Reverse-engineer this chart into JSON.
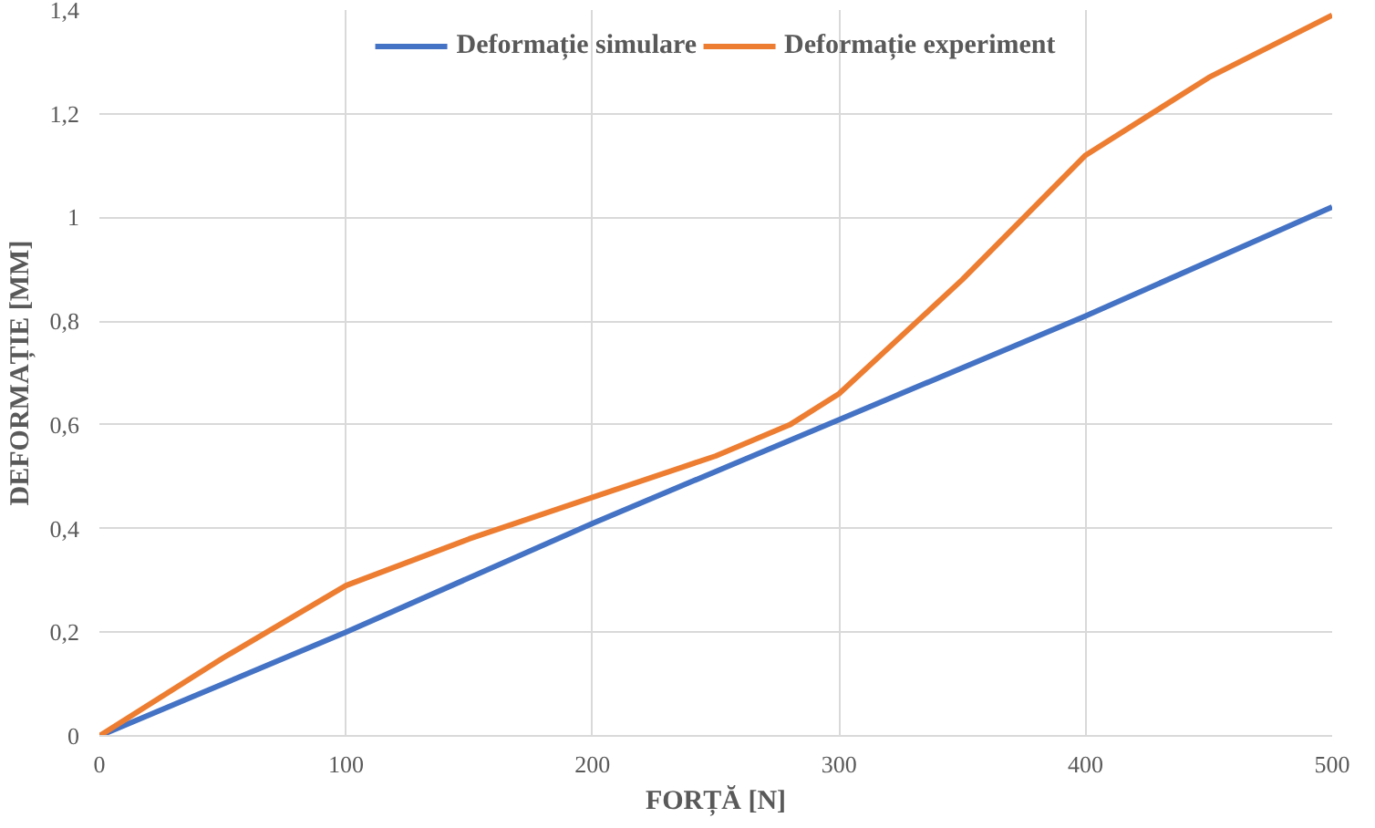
{
  "chart_data": {
    "type": "line",
    "xlabel": "FORȚĂ [N]",
    "ylabel": "DEFORMAȚIE [MM]",
    "xlim": [
      0,
      500
    ],
    "xticks": [
      0,
      100,
      200,
      300,
      400,
      500
    ],
    "ylim": [
      0,
      1.4
    ],
    "yticks": [
      0,
      {
        "value": 0.2,
        "label": "0,2"
      },
      {
        "value": 0.4,
        "label": "0,4"
      },
      {
        "value": 0.6,
        "label": "0,6"
      },
      {
        "value": 0.8,
        "label": "0,8"
      },
      1,
      {
        "value": 1.2,
        "label": "1,2"
      },
      {
        "value": 1.4,
        "label": "1,4"
      }
    ],
    "grid": true,
    "legend": "top",
    "line_style": "solid",
    "marker": "none",
    "series": [
      {
        "name": "Deformație simulare",
        "color": "#4472c4",
        "x": [
          0,
          100,
          200,
          300,
          400,
          500
        ],
        "values": [
          0,
          0.2,
          0.41,
          0.61,
          0.81,
          1.02
        ]
      },
      {
        "name": "Deformație experiment",
        "color": "#ed7d31",
        "x": [
          0,
          50,
          100,
          150,
          200,
          250,
          280,
          300,
          350,
          400,
          450,
          500
        ],
        "values": [
          0,
          0.15,
          0.29,
          0.38,
          0.46,
          0.54,
          0.6,
          0.66,
          0.88,
          1.12,
          1.27,
          1.39
        ]
      }
    ]
  }
}
